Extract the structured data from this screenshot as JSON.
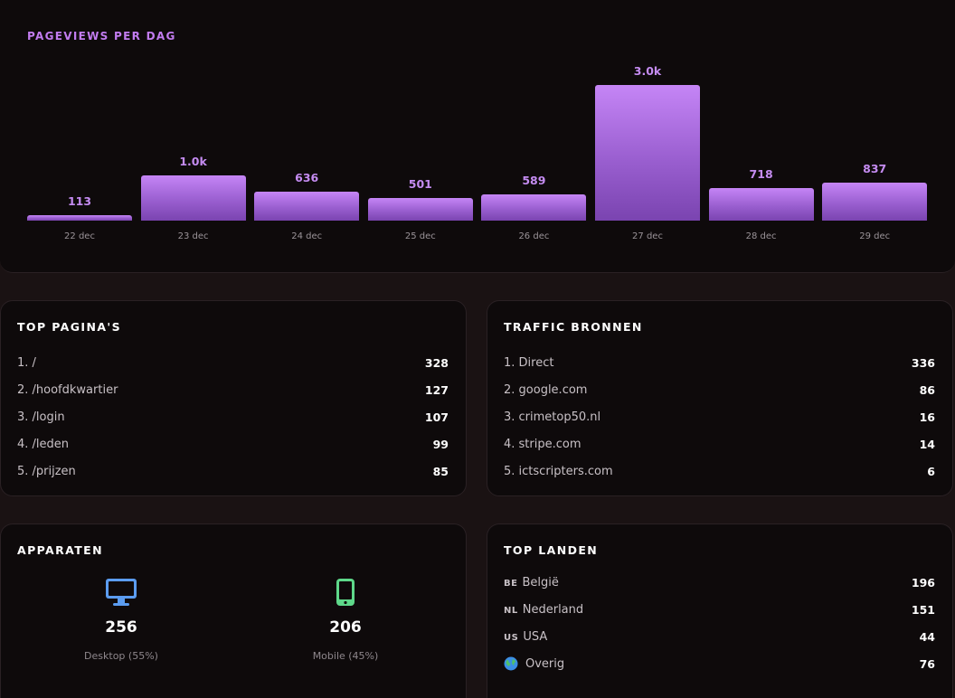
{
  "chart_data": {
    "type": "bar",
    "title": "PAGEVIEWS PER DAG",
    "categories": [
      "22 dec",
      "23 dec",
      "24 dec",
      "25 dec",
      "26 dec",
      "27 dec",
      "28 dec",
      "29 dec"
    ],
    "values": [
      113,
      1000,
      636,
      501,
      589,
      3000,
      718,
      837
    ],
    "value_labels": [
      "113",
      "1.0k",
      "636",
      "501",
      "589",
      "3.0k",
      "718",
      "837"
    ],
    "ylim": [
      0,
      3000
    ],
    "grid": false
  },
  "top_pages": {
    "title": "TOP PAGINA'S",
    "items": [
      {
        "label": "1. /",
        "value": "328"
      },
      {
        "label": "2. /hoofdkwartier",
        "value": "127"
      },
      {
        "label": "3. /login",
        "value": "107"
      },
      {
        "label": "4. /leden",
        "value": "99"
      },
      {
        "label": "5. /prijzen",
        "value": "85"
      }
    ]
  },
  "traffic_sources": {
    "title": "TRAFFIC BRONNEN",
    "items": [
      {
        "label": "1. Direct",
        "value": "336"
      },
      {
        "label": "2. google.com",
        "value": "86"
      },
      {
        "label": "3. crimetop50.nl",
        "value": "16"
      },
      {
        "label": "4. stripe.com",
        "value": "14"
      },
      {
        "label": "5. ictscripters.com",
        "value": "6"
      }
    ]
  },
  "devices": {
    "title": "APPARATEN",
    "desktop": {
      "count": "256",
      "label": "Desktop (55%)",
      "icon": "monitor-icon",
      "color": "#5b9cf0"
    },
    "mobile": {
      "count": "206",
      "label": "Mobile (45%)",
      "icon": "phone-icon",
      "color": "#5ed88a"
    }
  },
  "top_countries": {
    "title": "TOP LANDEN",
    "items": [
      {
        "flag": "BE",
        "label": "België",
        "value": "196"
      },
      {
        "flag": "NL",
        "label": "Nederland",
        "value": "151"
      },
      {
        "flag": "US",
        "label": "USA",
        "value": "44"
      },
      {
        "flag": "",
        "icon": "globe-icon",
        "label": "Overig",
        "value": "76"
      }
    ]
  },
  "colors": {
    "accent": "#c27cf0",
    "background": "#1a1213",
    "card": "#0e0a0b"
  }
}
